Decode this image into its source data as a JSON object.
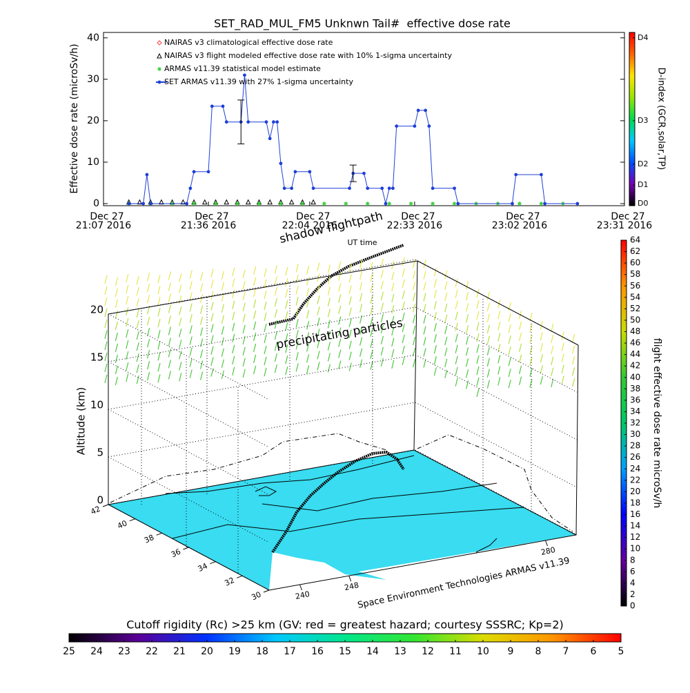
{
  "chart_data": [
    {
      "type": "line",
      "title": "SET_RAD_MUL_FM5 Unknwn Tail#  effective dose rate",
      "ylabel": "Effective dose rate (microSv/h)",
      "xlabel": "UT time",
      "xlim": [
        "21:07",
        "23:31"
      ],
      "xticks": [
        {
          "value": "21:07",
          "label": [
            "Dec 27",
            "21:07 2016"
          ]
        },
        {
          "value": "21:36",
          "label": [
            "Dec 27",
            "21:36 2016"
          ]
        },
        {
          "value": "22:04",
          "label": [
            "Dec 27",
            "22:04 2016"
          ]
        },
        {
          "value": "22:33",
          "label": [
            "Dec 27",
            "22:33 2016"
          ]
        },
        {
          "value": "23:02",
          "label": [
            "Dec 27",
            "23:02 2016"
          ]
        },
        {
          "value": "23:31",
          "label": [
            "Dec 27",
            "23:31 2016"
          ]
        }
      ],
      "ylim": [
        -0.5,
        41.3
      ],
      "yticks": [
        0,
        10,
        20,
        30,
        40
      ],
      "y2label": "D-index (GCR,solar,TP)",
      "y2lim": [
        -0.5,
        41.3
      ],
      "y2ticks": [
        {
          "value": 0,
          "label": "D0"
        },
        {
          "value": 4.5,
          "label": "D1"
        },
        {
          "value": 9.5,
          "label": "D2"
        },
        {
          "value": 20,
          "label": "D3"
        },
        {
          "value": 40,
          "label": "D4"
        }
      ],
      "y2colors": [
        "#000000",
        "#7800b4",
        "#0050ff",
        "#00c8ff",
        "#00dc50",
        "#96e600",
        "#ffe600",
        "#ff6400",
        "#ff0000"
      ],
      "series": [
        {
          "name": "NAIRAS v3 climatological effective dose rate",
          "color": "#ff4040",
          "marker": "diamond",
          "line": false,
          "x": [],
          "values": []
        },
        {
          "name": "NAIRAS v3 flight modeled effective dose rate with 10% 1-sigma uncertainty",
          "color": "#000000",
          "marker": "triangle",
          "line": false,
          "x": [
            "21:14",
            "21:17",
            "21:20",
            "21:23",
            "21:26",
            "21:29",
            "21:32",
            "21:35",
            "21:38",
            "21:41",
            "21:44",
            "21:47",
            "21:50",
            "21:53",
            "21:56",
            "21:59",
            "22:02",
            "22:05"
          ],
          "values": [
            0.4,
            0.4,
            0.4,
            0.4,
            0.4,
            0.4,
            0.4,
            0.4,
            0.4,
            0.4,
            0.4,
            0.4,
            0.4,
            0.4,
            0.4,
            0.4,
            0.4,
            0.4
          ]
        },
        {
          "name": "ARMAS v11.39 statistical model estimate",
          "color": "#33cc33",
          "marker": "star",
          "line": false,
          "x": [
            "21:14",
            "21:20",
            "21:26",
            "21:32",
            "21:38",
            "21:44",
            "21:50",
            "21:56",
            "22:02",
            "22:08",
            "22:14",
            "22:20",
            "22:26",
            "22:32",
            "22:38",
            "22:44",
            "22:50",
            "22:56",
            "23:02",
            "23:08",
            "23:14"
          ],
          "values": [
            0,
            0,
            0,
            0,
            0,
            0,
            0,
            0,
            0,
            0,
            0,
            0,
            0,
            0,
            0,
            0,
            0,
            0,
            0,
            0,
            0
          ]
        },
        {
          "name": "SET ARMAS v11.39 with 27% 1-sigma uncertainty",
          "color": "#1f3fd6",
          "marker": "circle",
          "line": true,
          "x": [
            "21:14",
            "21:18",
            "21:19",
            "21:20",
            "21:30",
            "21:31",
            "21:32",
            "21:36",
            "21:37",
            "21:40",
            "21:41",
            "21:45",
            "21:46",
            "21:47",
            "21:52",
            "21:53",
            "21:54",
            "21:55",
            "21:56",
            "21:57",
            "21:59",
            "22:00",
            "22:04",
            "22:05",
            "22:15",
            "22:16",
            "22:19",
            "22:20",
            "22:24",
            "22:25",
            "22:26",
            "22:27",
            "22:28",
            "22:33",
            "22:34",
            "22:36",
            "22:37",
            "22:38",
            "22:44",
            "22:45",
            "23:00",
            "23:01",
            "23:08",
            "23:09",
            "23:18"
          ],
          "values": [
            0,
            0,
            7,
            0,
            0,
            3.7,
            7.7,
            7.7,
            23.5,
            23.5,
            19.7,
            19.7,
            31,
            19.7,
            19.7,
            15.7,
            19.7,
            19.7,
            9.7,
            3.7,
            3.7,
            7.7,
            7.7,
            3.7,
            3.7,
            7.3,
            7.3,
            3.7,
            3.7,
            0,
            3.7,
            3.7,
            18.7,
            18.7,
            22.5,
            22.5,
            18.7,
            3.7,
            3.7,
            0,
            0,
            7,
            7,
            0,
            0
          ]
        }
      ],
      "error_bars": [
        {
          "x": "21:45",
          "value": 19.7,
          "error": 5.3
        },
        {
          "x": "22:16",
          "value": 7.3,
          "error": 2
        }
      ]
    },
    {
      "type": "surface3d",
      "annotations": [
        "shadow flightpath",
        "precipitating particles"
      ],
      "zlabel": "Altitude (km)",
      "zlim": [
        0,
        20
      ],
      "zticks": [
        0,
        5,
        10,
        15,
        20
      ],
      "latlim": [
        30,
        42
      ],
      "latticks": [
        30,
        32,
        34,
        36,
        38,
        40,
        42
      ],
      "lonlim": [
        235,
        285
      ],
      "lonticks": [
        240,
        248,
        280
      ],
      "credit": "Space Environment Technologies ARMAS v11.39"
    },
    {
      "type": "colorbar",
      "orientation": "vertical",
      "label": "flight effective dose rate microSv/h",
      "lim": [
        0,
        64
      ],
      "ticks": [
        0,
        2,
        4,
        6,
        8,
        10,
        12,
        14,
        16,
        18,
        20,
        22,
        24,
        26,
        28,
        30,
        32,
        34,
        36,
        38,
        40,
        42,
        44,
        46,
        48,
        50,
        52,
        54,
        56,
        58,
        60,
        62,
        64
      ],
      "colors": [
        "#000000",
        "#6400a0",
        "#0000ff",
        "#00a0ff",
        "#00c864",
        "#32c832",
        "#c8dc00",
        "#ff9600",
        "#ff0000"
      ]
    },
    {
      "type": "colorbar",
      "orientation": "horizontal",
      "label": "Cutoff rigidity (Rc) >25 km (GV: red = greatest hazard; courtesy SSSRC; Kp=2)",
      "lim": [
        25,
        5
      ],
      "ticks": [
        25,
        24,
        23,
        22,
        21,
        20,
        19,
        18,
        17,
        16,
        15,
        14,
        13,
        12,
        11,
        10,
        9,
        8,
        7,
        6,
        5
      ],
      "colors": [
        "#000000",
        "#5a0096",
        "#0032ff",
        "#00c8ff",
        "#00e68c",
        "#32e632",
        "#dcdc00",
        "#ff9600",
        "#ff0000"
      ]
    }
  ]
}
